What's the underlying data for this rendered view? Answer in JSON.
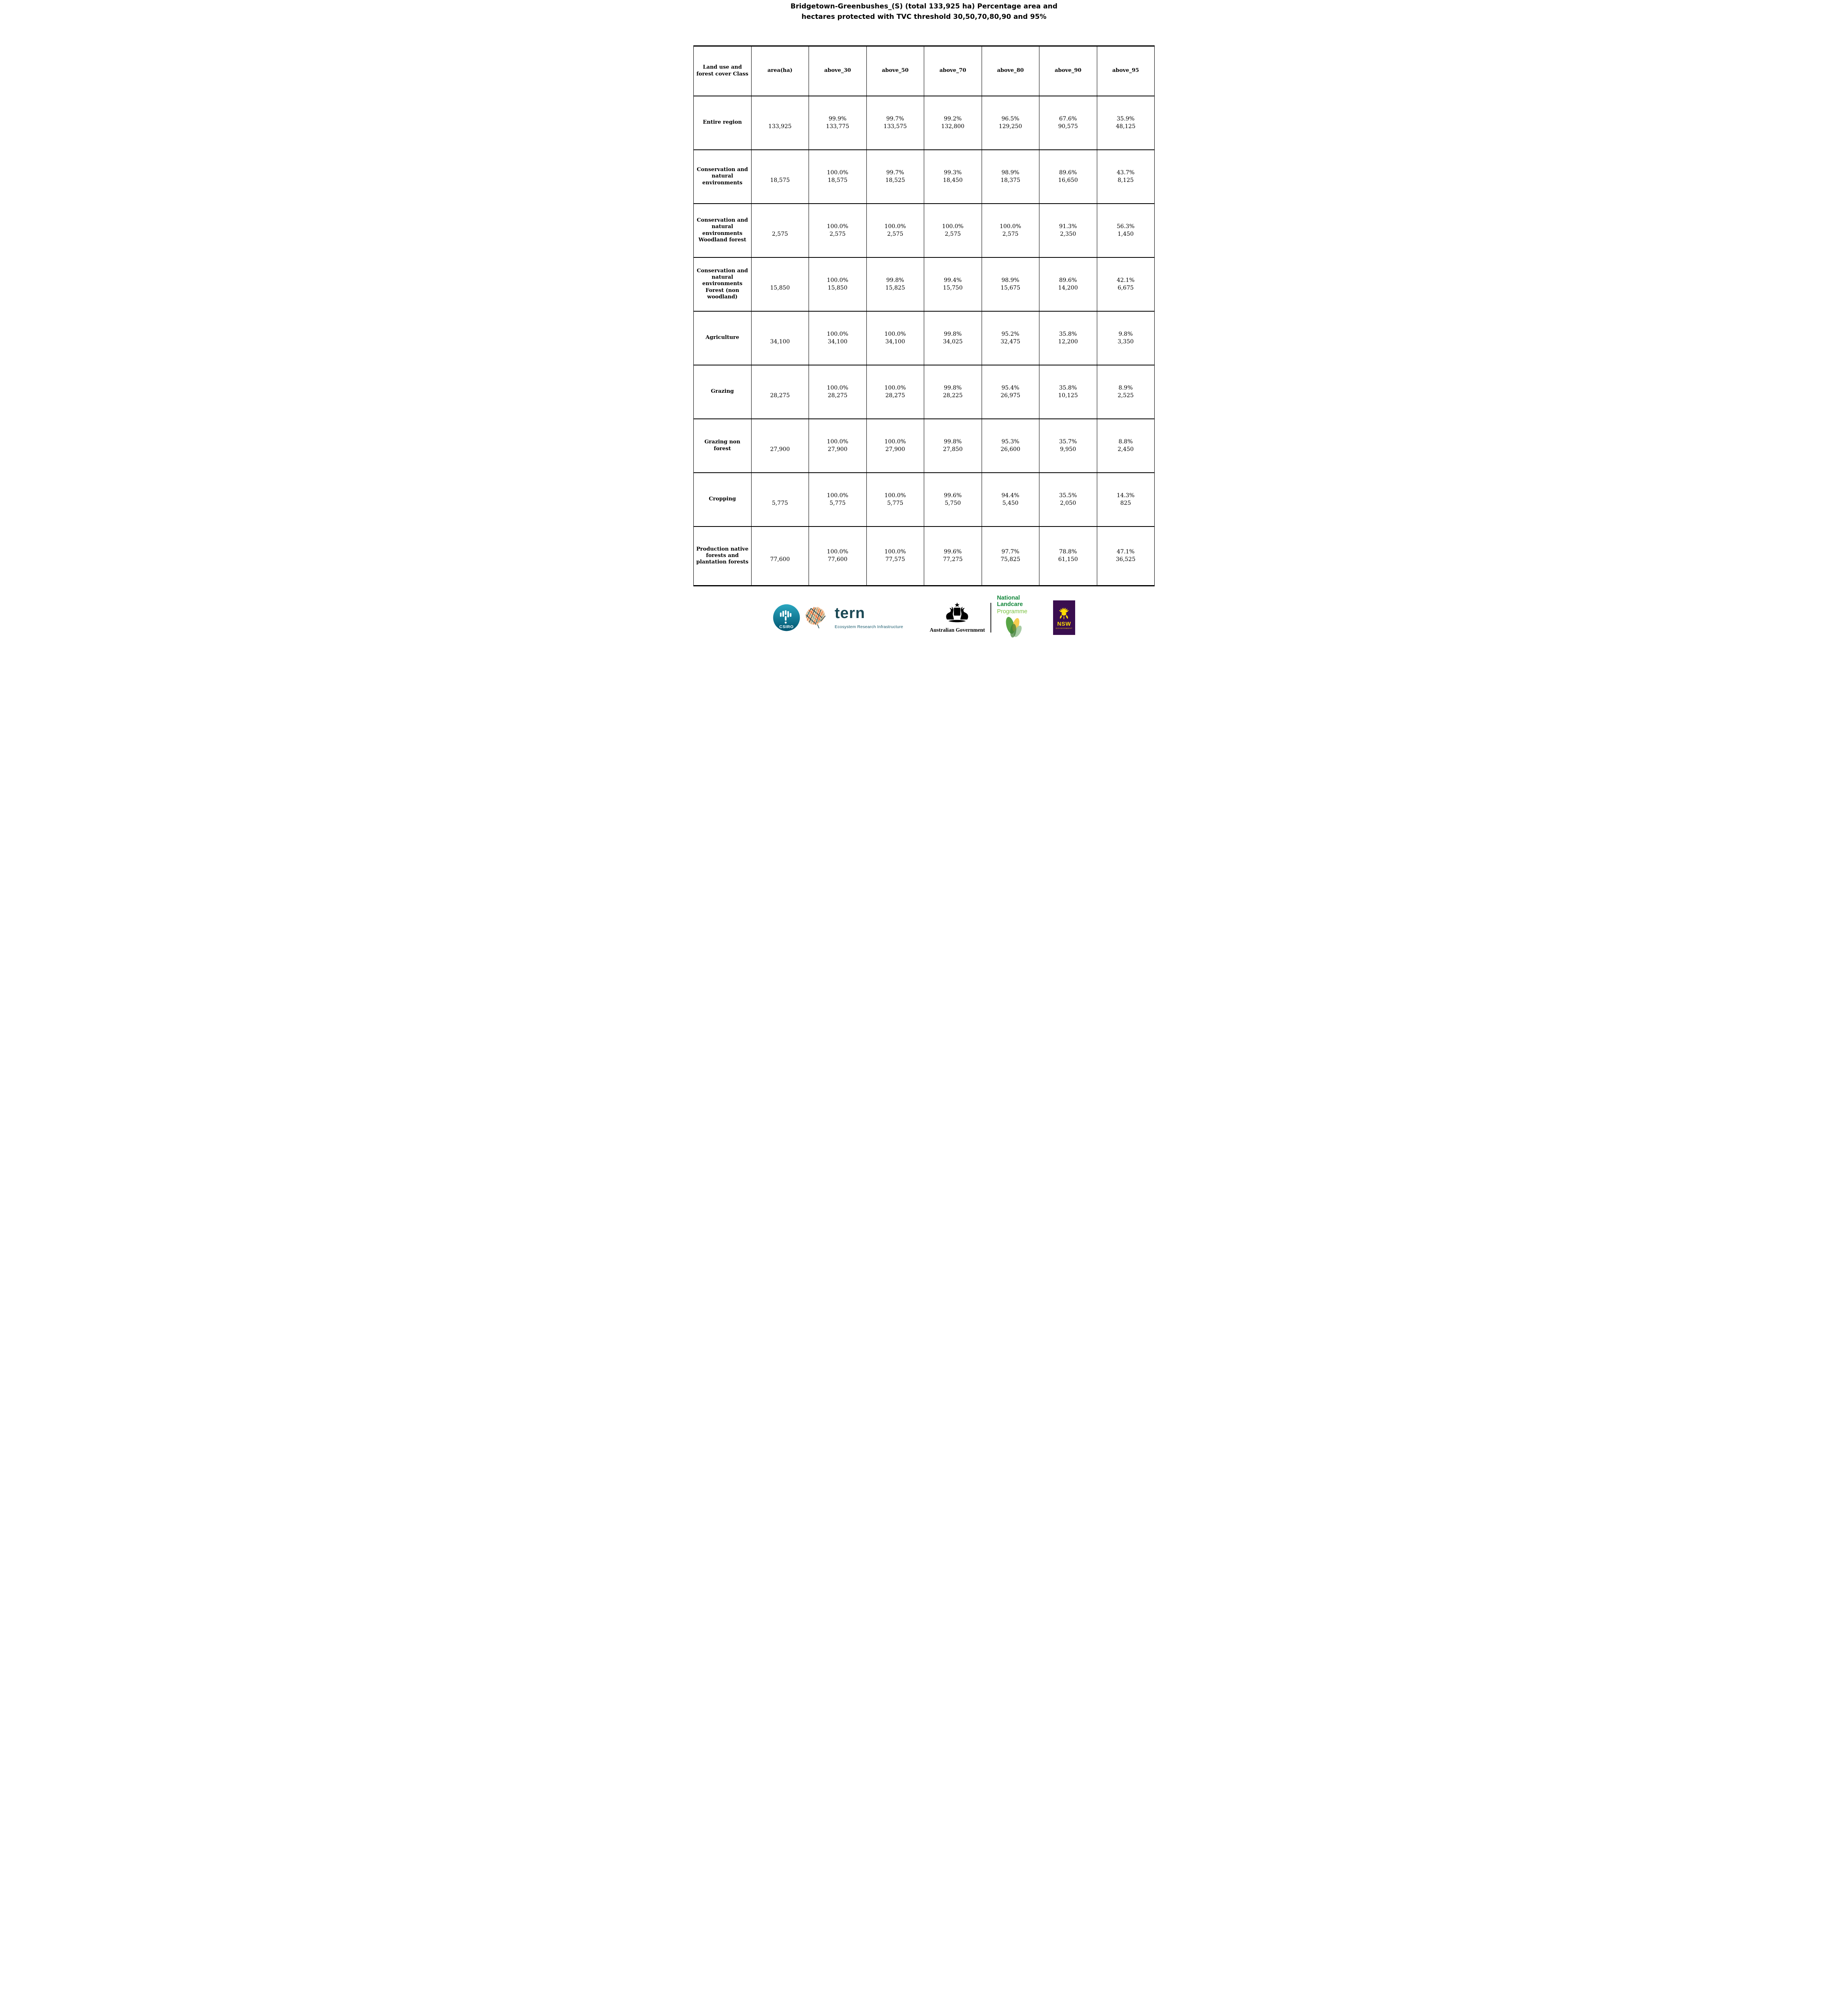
{
  "title": "Bridgetown-Greenbushes_(S) (total 133,925 ha) Percentage area and hectares protected with TVC  threshold 30,50,70,80,90 and 95%",
  "table": {
    "columns": [
      "Land use and forest cover Class",
      "area(ha)",
      "above_30",
      "above_50",
      "above_70",
      "above_80",
      "above_90",
      "above_95"
    ],
    "rows": [
      {
        "label": "Entire region",
        "area": "133,925",
        "cells": [
          {
            "pct": "99.9%",
            "ha": "133,775"
          },
          {
            "pct": "99.7%",
            "ha": "133,575"
          },
          {
            "pct": "99.2%",
            "ha": "132,800"
          },
          {
            "pct": "96.5%",
            "ha": "129,250"
          },
          {
            "pct": "67.6%",
            "ha": "90,575"
          },
          {
            "pct": "35.9%",
            "ha": "48,125"
          }
        ]
      },
      {
        "label": "Conservation and natural environments",
        "area": "18,575",
        "cells": [
          {
            "pct": "100.0%",
            "ha": "18,575"
          },
          {
            "pct": "99.7%",
            "ha": "18,525"
          },
          {
            "pct": "99.3%",
            "ha": "18,450"
          },
          {
            "pct": "98.9%",
            "ha": "18,375"
          },
          {
            "pct": "89.6%",
            "ha": "16,650"
          },
          {
            "pct": "43.7%",
            "ha": "8,125"
          }
        ]
      },
      {
        "label": "Conservation and natural environments Woodland forest",
        "area": "2,575",
        "cells": [
          {
            "pct": "100.0%",
            "ha": "2,575"
          },
          {
            "pct": "100.0%",
            "ha": "2,575"
          },
          {
            "pct": "100.0%",
            "ha": "2,575"
          },
          {
            "pct": "100.0%",
            "ha": "2,575"
          },
          {
            "pct": "91.3%",
            "ha": "2,350"
          },
          {
            "pct": "56.3%",
            "ha": "1,450"
          }
        ]
      },
      {
        "label": "Conservation and natural environments Forest (non woodland)",
        "area": "15,850",
        "cells": [
          {
            "pct": "100.0%",
            "ha": "15,850"
          },
          {
            "pct": "99.8%",
            "ha": "15,825"
          },
          {
            "pct": "99.4%",
            "ha": "15,750"
          },
          {
            "pct": "98.9%",
            "ha": "15,675"
          },
          {
            "pct": "89.6%",
            "ha": "14,200"
          },
          {
            "pct": "42.1%",
            "ha": "6,675"
          }
        ]
      },
      {
        "label": "Agriculture",
        "area": "34,100",
        "cells": [
          {
            "pct": "100.0%",
            "ha": "34,100"
          },
          {
            "pct": "100.0%",
            "ha": "34,100"
          },
          {
            "pct": "99.8%",
            "ha": "34,025"
          },
          {
            "pct": "95.2%",
            "ha": "32,475"
          },
          {
            "pct": "35.8%",
            "ha": "12,200"
          },
          {
            "pct": "9.8%",
            "ha": "3,350"
          }
        ]
      },
      {
        "label": "Grazing",
        "area": "28,275",
        "cells": [
          {
            "pct": "100.0%",
            "ha": "28,275"
          },
          {
            "pct": "100.0%",
            "ha": "28,275"
          },
          {
            "pct": "99.8%",
            "ha": "28,225"
          },
          {
            "pct": "95.4%",
            "ha": "26,975"
          },
          {
            "pct": "35.8%",
            "ha": "10,125"
          },
          {
            "pct": "8.9%",
            "ha": "2,525"
          }
        ]
      },
      {
        "label": "Grazing non forest",
        "area": "27,900",
        "cells": [
          {
            "pct": "100.0%",
            "ha": "27,900"
          },
          {
            "pct": "100.0%",
            "ha": "27,900"
          },
          {
            "pct": "99.8%",
            "ha": "27,850"
          },
          {
            "pct": "95.3%",
            "ha": "26,600"
          },
          {
            "pct": "35.7%",
            "ha": "9,950"
          },
          {
            "pct": "8.8%",
            "ha": "2,450"
          }
        ]
      },
      {
        "label": "Cropping",
        "area": "5,775",
        "cells": [
          {
            "pct": "100.0%",
            "ha": "5,775"
          },
          {
            "pct": "100.0%",
            "ha": "5,775"
          },
          {
            "pct": "99.6%",
            "ha": "5,750"
          },
          {
            "pct": "94.4%",
            "ha": "5,450"
          },
          {
            "pct": "35.5%",
            "ha": "2,050"
          },
          {
            "pct": "14.3%",
            "ha": "825"
          }
        ]
      },
      {
        "label": "Production native forests and plantation forests",
        "area": "77,600",
        "cells": [
          {
            "pct": "100.0%",
            "ha": "77,600"
          },
          {
            "pct": "100.0%",
            "ha": "77,575"
          },
          {
            "pct": "99.6%",
            "ha": "77,275"
          },
          {
            "pct": "97.7%",
            "ha": "75,825"
          },
          {
            "pct": "78.8%",
            "ha": "61,150"
          },
          {
            "pct": "47.1%",
            "ha": "36,525"
          }
        ]
      }
    ]
  },
  "footer": {
    "csiro_label": "CSIRO",
    "tern_label": "tern",
    "tern_subtitle": "Ecosystem Research Infrastructure",
    "aus_gov_label": "Australian Government",
    "landcare_line1": "National",
    "landcare_line2": "Landcare",
    "landcare_line3": "Programme",
    "nsw_label": "NSW",
    "nsw_sub": "GOVERNMENT"
  },
  "colors": {
    "csiro_teal_top": "#2AA7C0",
    "csiro_teal_bottom": "#00546F",
    "tern_dark": "#1A4854",
    "tern_subtitle": "#1A5B6E",
    "landcare_green": "#13873B",
    "landcare_light_green": "#7AC142",
    "nsw_purple": "#3A0E4F",
    "nsw_yellow": "#FFDD00"
  }
}
